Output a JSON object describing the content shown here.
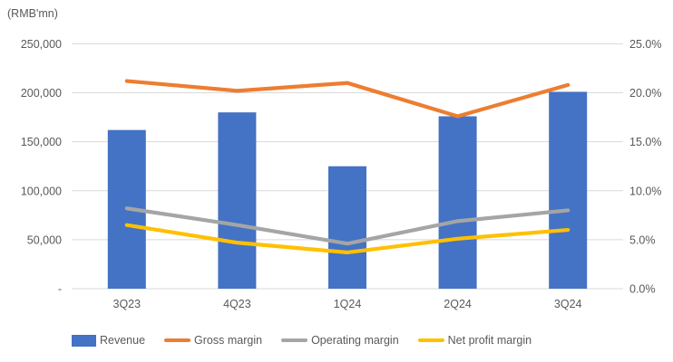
{
  "chart_data": {
    "type": "combo",
    "title": "",
    "left_axis_title": "(RMB'mn)",
    "categories": [
      "3Q23",
      "4Q23",
      "1Q24",
      "2Q24",
      "3Q24"
    ],
    "series": [
      {
        "name": "Revenue",
        "type": "bar",
        "axis": "left",
        "color": "#4472C4",
        "values": [
          162000,
          180000,
          125000,
          176000,
          201000
        ]
      },
      {
        "name": "Gross margin",
        "type": "line",
        "axis": "right",
        "color": "#ED7D31",
        "values": [
          21.2,
          20.2,
          21.0,
          17.6,
          20.8
        ]
      },
      {
        "name": "Operating margin",
        "type": "line",
        "axis": "right",
        "color": "#A5A5A5",
        "values": [
          8.2,
          6.5,
          4.6,
          6.9,
          8.0
        ]
      },
      {
        "name": "Net profit margin",
        "type": "line",
        "axis": "right",
        "color": "#FFC000",
        "values": [
          6.5,
          4.7,
          3.7,
          5.1,
          6.0
        ]
      }
    ],
    "left_axis": {
      "min": 0,
      "max": 250000,
      "ticks": [
        "250,000",
        "200,000",
        "150,000",
        "100,000",
        "50,000",
        "-"
      ]
    },
    "right_axis": {
      "min": 0,
      "max": 25,
      "ticks": [
        "25.0%",
        "20.0%",
        "15.0%",
        "10.0%",
        "5.0%",
        "0.0%"
      ]
    },
    "grid": true,
    "gridline_color": "#D9D9D9",
    "legend_position": "bottom",
    "xlabel": "",
    "ylabel_left": "(RMB'mn)",
    "ylabel_right": "%"
  }
}
